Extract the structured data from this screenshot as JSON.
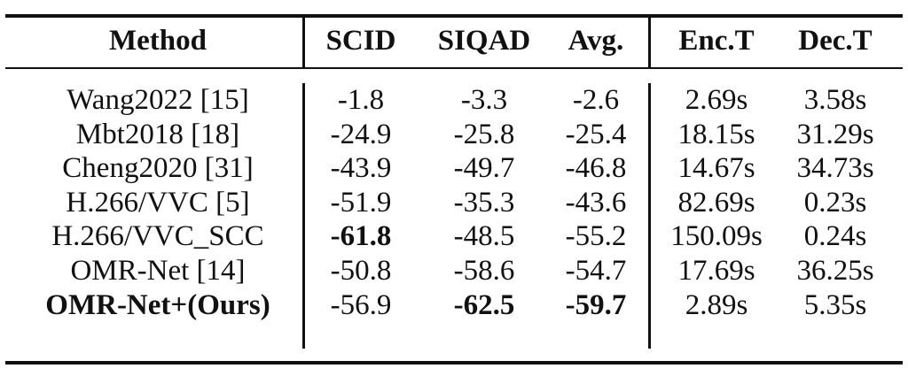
{
  "headers": [
    "Method",
    "SCID",
    "SIQAD",
    "Avg.",
    "Enc.T",
    "Dec.T"
  ],
  "rows": [
    {
      "method": "Wang2022 [15]",
      "scid": "-1.8",
      "siqad": "-3.3",
      "avg": "-2.6",
      "enc": "2.69s",
      "dec": "3.58s",
      "bold": []
    },
    {
      "method": "Mbt2018 [18]",
      "scid": "-24.9",
      "siqad": "-25.8",
      "avg": "-25.4",
      "enc": "18.15s",
      "dec": "31.29s",
      "bold": []
    },
    {
      "method": "Cheng2020 [31]",
      "scid": "-43.9",
      "siqad": "-49.7",
      "avg": "-46.8",
      "enc": "14.67s",
      "dec": "34.73s",
      "bold": []
    },
    {
      "method": "H.266/VVC [5]",
      "scid": "-51.9",
      "siqad": "-35.3",
      "avg": "-43.6",
      "enc": "82.69s",
      "dec": "0.23s",
      "bold": []
    },
    {
      "method": "H.266/VVC_SCC",
      "scid": "-61.8",
      "siqad": "-48.5",
      "avg": "-55.2",
      "enc": "150.09s",
      "dec": "0.24s",
      "bold": [
        "scid"
      ]
    },
    {
      "method": "OMR-Net [14]",
      "scid": "-50.8",
      "siqad": "-58.6",
      "avg": "-54.7",
      "enc": "17.69s",
      "dec": "36.25s",
      "bold": []
    },
    {
      "method": "OMR-Net+(Ours)",
      "scid": "-56.9",
      "siqad": "-62.5",
      "avg": "-59.7",
      "enc": "2.89s",
      "dec": "5.35s",
      "bold": [
        "method",
        "siqad",
        "avg"
      ]
    }
  ]
}
